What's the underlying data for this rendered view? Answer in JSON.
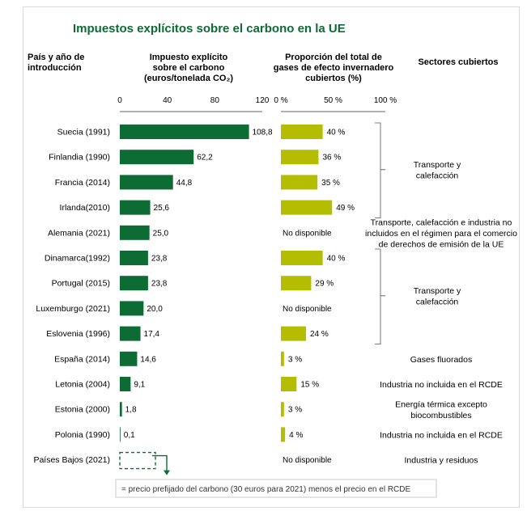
{
  "chart_data": {
    "type": "bar",
    "title": "Impuestos explícitos sobre el carbono en la UE",
    "column_headers": {
      "country": [
        "País y año de",
        "introducción"
      ],
      "tax": [
        "Impuesto explícito",
        "sobre el carbono",
        "(euros/tonelada CO₂)"
      ],
      "share": [
        "Proporción del total de",
        "gases de efecto invernadero",
        "cubiertos (%)"
      ],
      "sectors": "Sectores cubiertos"
    },
    "tax_axis": {
      "range": [
        0,
        120
      ],
      "ticks": [
        "0",
        "40",
        "80",
        "120"
      ]
    },
    "share_axis": {
      "range": [
        0,
        100
      ],
      "ticks": [
        "0 %",
        "50 %",
        "100 %"
      ]
    },
    "categories": [
      "Suecia (1991)",
      "Finlandia (1990)",
      "Francia (2014)",
      "Irlanda(2010)",
      "Alemania (2021)",
      "Dinamarca(1992)",
      "Portugal (2015)",
      "Luxemburgo (2021)",
      "Eslovenia (1996)",
      "España (2014)",
      "Letonia (2004)",
      "Estonia (2000)",
      "Polonia (1990)",
      "Países Bajos (2021)"
    ],
    "series": [
      {
        "values": [
          108.8,
          62.2,
          44.8,
          25.6,
          25.0,
          23.8,
          23.8,
          20.0,
          17.4,
          14.6,
          9.1,
          1.8,
          0.1,
          null
        ],
        "labels": [
          "108,8",
          "62,2",
          "44,8",
          "25,6",
          "25,0",
          "23,8",
          "23,8",
          "20,0",
          "17,4",
          "14,6",
          "9,1",
          "1,8",
          "0,1",
          ""
        ],
        "color": "#0d6b34"
      },
      {
        "values": [
          40,
          36,
          35,
          49,
          null,
          40,
          29,
          null,
          24,
          3,
          15,
          3,
          4,
          null
        ],
        "labels": [
          "40 %",
          "36 %",
          "35 %",
          "49 %",
          "No disponible",
          "40 %",
          "29 %",
          "No disponible",
          "24 %",
          "3 %",
          "15 %",
          "3 %",
          "4 %",
          "No disponible"
        ],
        "color": "#b5bd00"
      }
    ],
    "sectors": [
      {
        "rows": [
          0,
          3
        ],
        "lines": [
          "Transporte y",
          "calefacción"
        ],
        "bracket": true
      },
      {
        "rows": [
          4,
          4
        ],
        "lines": [
          "Transporte, calefacción e industria no",
          "incluidos en el régimen para el comercio",
          "de derechos de emisión de la UE"
        ],
        "bracket": false
      },
      {
        "rows": [
          5,
          8
        ],
        "lines": [
          "Transporte y",
          "calefacción"
        ],
        "bracket": true
      },
      {
        "rows": [
          9,
          9
        ],
        "lines": [
          "Gases fluorados"
        ],
        "bracket": false
      },
      {
        "rows": [
          10,
          10
        ],
        "lines": [
          "Industria no incluida en el RCDE"
        ],
        "bracket": false
      },
      {
        "rows": [
          11,
          11
        ],
        "lines": [
          "Energía térmica excepto",
          "biocombustibles"
        ],
        "bracket": false
      },
      {
        "rows": [
          12,
          12
        ],
        "lines": [
          "Industria no incluida en el RCDE"
        ],
        "bracket": false
      },
      {
        "rows": [
          13,
          13
        ],
        "lines": [
          "Industria y residuos"
        ],
        "bracket": false
      }
    ],
    "prefixed_price_eur": 30,
    "legend": "= precio prefijado del carbono (30 euros para 2021) menos el precio en el RCDE"
  }
}
